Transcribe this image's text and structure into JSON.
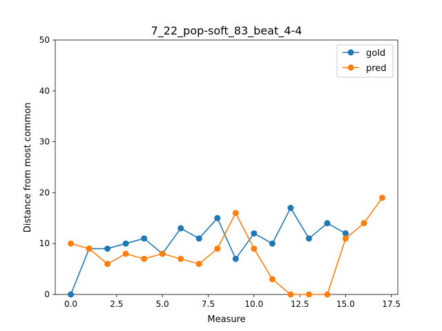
{
  "chart_data": {
    "type": "line",
    "title": "7_22_pop-soft_83_beat_4-4",
    "xlabel": "Measure",
    "ylabel": "Distance from most common",
    "xlim": [
      -0.85,
      17.85
    ],
    "ylim": [
      0,
      50
    ],
    "xticks": [
      0.0,
      2.5,
      5.0,
      7.5,
      10.0,
      12.5,
      15.0,
      17.5
    ],
    "xtick_labels": [
      "0.0",
      "2.5",
      "5.0",
      "7.5",
      "10.0",
      "12.5",
      "15.0",
      "17.5"
    ],
    "yticks": [
      0,
      10,
      20,
      30,
      40,
      50
    ],
    "ytick_labels": [
      "0",
      "10",
      "20",
      "30",
      "40",
      "50"
    ],
    "grid": false,
    "legend_position": "top-right",
    "series": [
      {
        "name": "gold",
        "color": "#1f77b4",
        "x": [
          0,
          1,
          2,
          3,
          4,
          5,
          6,
          7,
          8,
          9,
          10,
          11,
          12,
          13,
          14,
          15
        ],
        "values": [
          0,
          9,
          9,
          10,
          11,
          8,
          13,
          11,
          15,
          7,
          12,
          10,
          17,
          11,
          14,
          12
        ]
      },
      {
        "name": "pred",
        "color": "#ff7f0e",
        "x": [
          0,
          1,
          2,
          3,
          4,
          5,
          6,
          7,
          8,
          9,
          10,
          11,
          12,
          13,
          14,
          15,
          16,
          17
        ],
        "values": [
          10,
          9,
          6,
          8,
          7,
          8,
          7,
          6,
          9,
          16,
          9,
          3,
          0,
          0,
          0,
          11,
          14,
          19
        ]
      }
    ]
  }
}
